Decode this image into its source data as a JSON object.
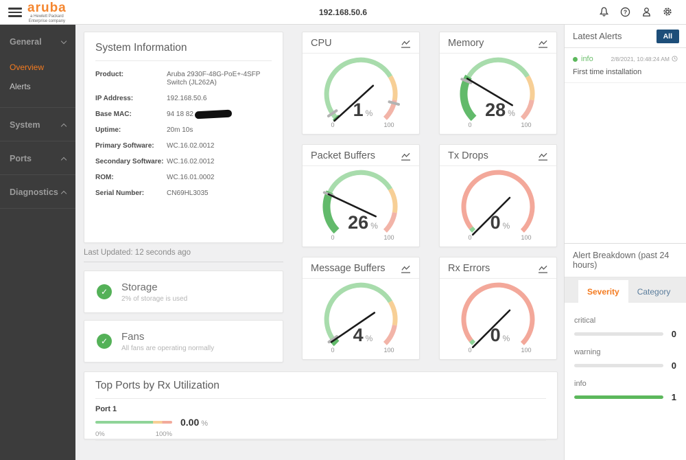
{
  "topbar": {
    "ip": "192.168.50.6",
    "logo_brand": "aruba",
    "logo_subtitle": "a Hewlett Packard\nEnterprise company",
    "icons": [
      "bell",
      "help",
      "user",
      "gear"
    ]
  },
  "sidebar": {
    "sections": [
      {
        "label": "General",
        "chevron": "down",
        "items": [
          {
            "label": "Overview",
            "active": true
          },
          {
            "label": "Alerts",
            "active": false
          }
        ]
      },
      {
        "label": "System",
        "chevron": "up",
        "items": []
      },
      {
        "label": "Ports",
        "chevron": "up",
        "items": []
      },
      {
        "label": "Diagnostics",
        "chevron": "up",
        "items": []
      }
    ]
  },
  "system_info": {
    "title": "System Information",
    "rows": [
      {
        "label": "Product:",
        "value": "Aruba 2930F-48G-PoE+-4SFP Switch (JL262A)"
      },
      {
        "label": "IP Address:",
        "value": "192.168.50.6"
      },
      {
        "label": "Base MAC:",
        "value": "94 18 82",
        "redacted": true
      },
      {
        "label": "Uptime:",
        "value": "20m 10s"
      },
      {
        "label": "Primary Software:",
        "value": "WC.16.02.0012"
      },
      {
        "label": "Secondary Software:",
        "value": "WC.16.02.0012"
      },
      {
        "label": "ROM:",
        "value": "WC.16.01.0002"
      },
      {
        "label": "Serial Number:",
        "value": "CN69HL3035"
      }
    ]
  },
  "last_updated": "Last Updated: 12 seconds ago",
  "gauges": [
    {
      "title": "CPU",
      "value": 1,
      "unit": "%",
      "min_label": "0",
      "max_label": "100",
      "style": "usage",
      "markers": [
        0.04,
        0.89
      ]
    },
    {
      "title": "Memory",
      "value": 28,
      "unit": "%",
      "min_label": "0",
      "max_label": "100",
      "style": "usage",
      "markers": [
        0.25
      ]
    },
    {
      "title": "Packet Buffers",
      "value": 26,
      "unit": "%",
      "min_label": "0",
      "max_label": "100",
      "style": "usage",
      "markers": [
        0.245
      ]
    },
    {
      "title": "Tx Drops",
      "value": 0,
      "unit": "%",
      "min_label": "0",
      "max_label": "100",
      "style": "error",
      "markers": []
    },
    {
      "title": "Message Buffers",
      "value": 4,
      "unit": "%",
      "min_label": "0",
      "max_label": "100",
      "style": "usage",
      "markers": [
        0.035
      ]
    },
    {
      "title": "Rx Errors",
      "value": 0,
      "unit": "%",
      "min_label": "0",
      "max_label": "100",
      "style": "error",
      "markers": []
    }
  ],
  "gauge_styles": {
    "usage_segments": [
      {
        "from": 0,
        "to": 0.72,
        "color": "#a8dcac"
      },
      {
        "from": 0.72,
        "to": 0.87,
        "color": "#f7cf96"
      },
      {
        "from": 0.87,
        "to": 1,
        "color": "#f2b4a8"
      }
    ],
    "error_segments": [
      {
        "from": 0,
        "to": 0.025,
        "color": "#8fd498"
      },
      {
        "from": 0.025,
        "to": 1,
        "color": "#f3a89a"
      }
    ],
    "fill_color": "#62ba6b",
    "marker_color": "#b3b3b3",
    "needle_color": "#1b1b1b"
  },
  "health": [
    {
      "title": "Storage",
      "desc": "2% of storage is used"
    },
    {
      "title": "Fans",
      "desc": "All fans are operating normally"
    }
  ],
  "top_ports": {
    "title": "Top Ports by Rx Utilization",
    "ports": [
      {
        "name": "Port 1",
        "value": "0.00",
        "unit": "%",
        "axis_min": "0%",
        "axis_max": "100%",
        "utilization_pct": 0
      }
    ]
  },
  "alerts_panel": {
    "title": "Latest Alerts",
    "all_label": "All",
    "alerts": [
      {
        "severity": "info",
        "timestamp": "2/8/2021, 10:48:24 AM",
        "message": "First time installation"
      }
    ]
  },
  "breakdown": {
    "title": "Alert Breakdown (past 24 hours)",
    "tabs": [
      {
        "label": "Severity",
        "active": true
      },
      {
        "label": "Category",
        "active": false
      }
    ],
    "bars": [
      {
        "label": "critical",
        "count": "0",
        "fill_pct": 0
      },
      {
        "label": "warning",
        "count": "0",
        "fill_pct": 0
      },
      {
        "label": "info",
        "count": "1",
        "fill_pct": 100
      }
    ]
  },
  "colors": {
    "accent_orange": "#f47b20",
    "info_green": "#5cb85c",
    "all_button_bg": "#1d4e79",
    "sidebar_bg": "#3c3c3c",
    "port_bar_green": "#8fd498",
    "port_bar_amber": "#f7cf96",
    "port_bar_pink": "#f2aa9b"
  }
}
